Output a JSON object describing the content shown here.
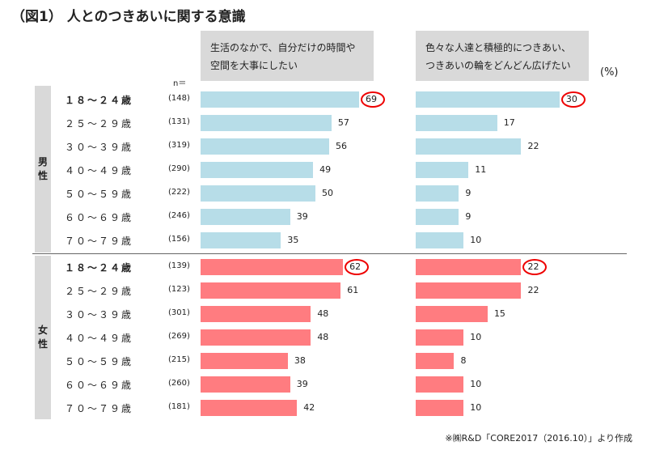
{
  "title": "（図1） 人とのつきあいに関する意識",
  "n_label": "n＝",
  "unit": "(%)",
  "source_note": "※㈱R&D「CORE2017（2016.10）」より作成",
  "colors": {
    "male": "#b7dde8",
    "female": "#ff7c80",
    "highlight": "#e00000",
    "header_bg": "#d9d9d9"
  },
  "chart_data": {
    "type": "bar",
    "orientation": "horizontal",
    "unit": "%",
    "groups": [
      {
        "name": "男性",
        "rows": [
          {
            "age": "１８～２４歳",
            "n": "(148)",
            "bold": true
          },
          {
            "age": "２５～２９歳",
            "n": "(131)"
          },
          {
            "age": "３０～３９歳",
            "n": "(319)"
          },
          {
            "age": "４０～４９歳",
            "n": "(290)"
          },
          {
            "age": "５０～５９歳",
            "n": "(222)"
          },
          {
            "age": "６０～６９歳",
            "n": "(246)"
          },
          {
            "age": "７０～７９歳",
            "n": "(156)"
          }
        ]
      },
      {
        "name": "女性",
        "rows": [
          {
            "age": "１８～２４歳",
            "n": "(139)",
            "bold": true
          },
          {
            "age": "２５～２９歳",
            "n": "(123)"
          },
          {
            "age": "３０～３９歳",
            "n": "(301)"
          },
          {
            "age": "４０～４９歳",
            "n": "(269)"
          },
          {
            "age": "５０～５９歳",
            "n": "(215)"
          },
          {
            "age": "６０～６９歳",
            "n": "(260)"
          },
          {
            "age": "７０～７９歳",
            "n": "(181)"
          }
        ]
      }
    ],
    "series": [
      {
        "name": "生活のなかで、自分だけの時間や空間を大事にしたい",
        "values": [
          [
            69,
            57,
            56,
            49,
            50,
            39,
            35
          ],
          [
            62,
            61,
            48,
            48,
            38,
            39,
            42
          ]
        ]
      },
      {
        "name": "色々な人達と積極的につきあい、つきあいの輪をどんどん広げたい",
        "values": [
          [
            30,
            17,
            22,
            11,
            9,
            9,
            10
          ],
          [
            22,
            22,
            15,
            10,
            8,
            10,
            10
          ]
        ]
      }
    ],
    "highlighted": "１８～２４歳"
  }
}
